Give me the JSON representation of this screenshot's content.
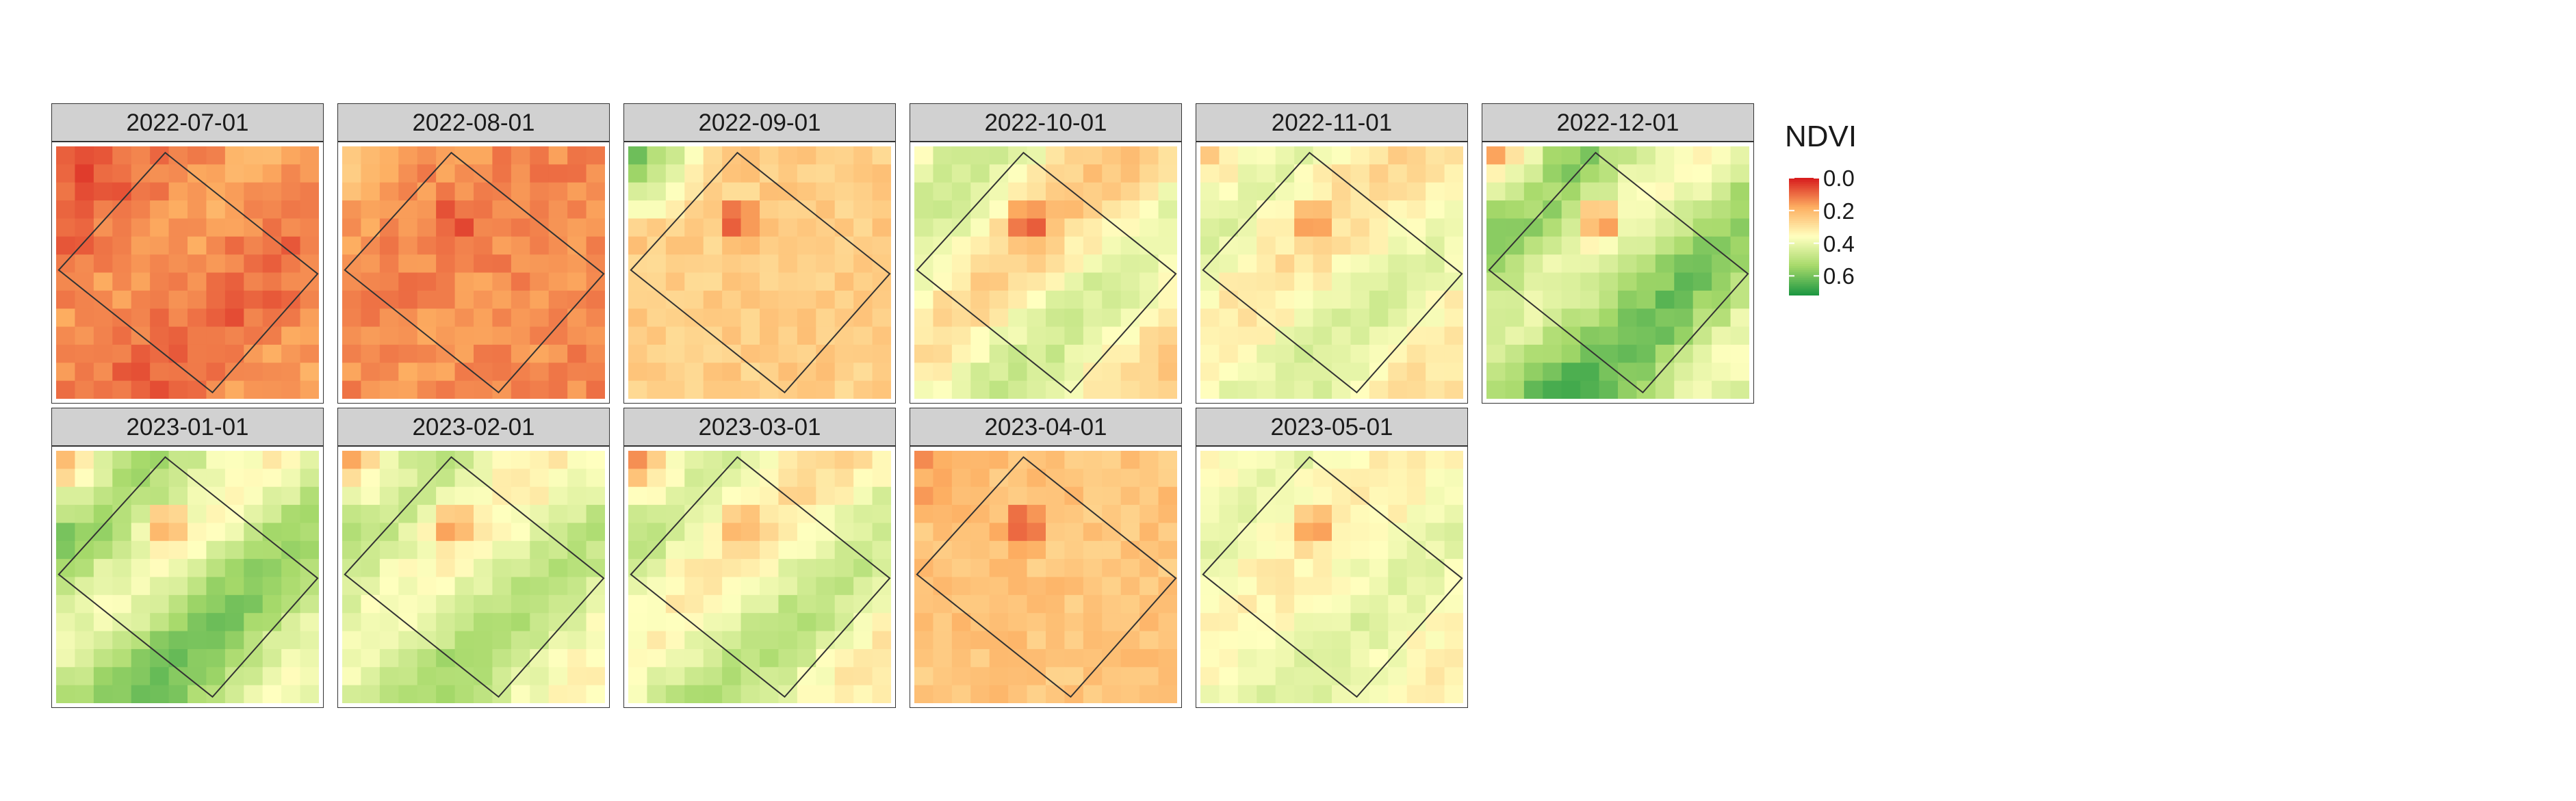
{
  "chart_data": {
    "type": "heatmap",
    "title": "",
    "xlabel": "",
    "ylabel": "",
    "facet_layout": {
      "ncol": 6,
      "nrow": 2
    },
    "legend": {
      "title": "NDVI",
      "position": "right",
      "colors": [
        "#d7191c",
        "#fdae61",
        "#ffffbf",
        "#a6d96a",
        "#1a9641"
      ],
      "domain": [
        0,
        0.72
      ],
      "breaks": [
        0.0,
        0.2,
        0.4,
        0.6
      ],
      "break_labels": [
        "0.0",
        "0.2",
        "0.4",
        "0.6"
      ]
    },
    "grid_size": {
      "rows": 14,
      "cols": 14
    },
    "overlay": "rotated rectangular field boundary outline",
    "panels": [
      {
        "label": "2022-07-01",
        "base": 0.13,
        "high_offset": -0.05,
        "nw_offset": -0.04,
        "hotspot": 0.02
      },
      {
        "label": "2022-08-01",
        "base": 0.14,
        "high_offset": 0.01,
        "nw_offset": 0.1,
        "hotspot": 0.06
      },
      {
        "label": "2022-09-01",
        "base": 0.25,
        "high_offset": 0.0,
        "nw_offset": 0.38,
        "hotspot": 0.16
      },
      {
        "label": "2022-10-01",
        "base": 0.35,
        "high_offset": 0.14,
        "nw_offset": 0.04,
        "hotspot": 0.2
      },
      {
        "label": "2022-11-01",
        "base": 0.36,
        "high_offset": 0.1,
        "nw_offset": -0.1,
        "hotspot": 0.16
      },
      {
        "label": "2022-12-01",
        "base": 0.5,
        "high_offset": 0.16,
        "nw_offset": -0.3,
        "hotspot": 0.24
      },
      {
        "label": "2023-01-01",
        "base": 0.48,
        "high_offset": 0.15,
        "nw_offset": -0.3,
        "hotspot": 0.22
      },
      {
        "label": "2023-02-01",
        "base": 0.43,
        "high_offset": 0.12,
        "nw_offset": -0.24,
        "hotspot": 0.2
      },
      {
        "label": "2023-03-01",
        "base": 0.4,
        "high_offset": 0.13,
        "nw_offset": -0.24,
        "hotspot": 0.15
      },
      {
        "label": "2023-04-01",
        "base": 0.23,
        "high_offset": 0.0,
        "nw_offset": -0.08,
        "hotspot": 0.15
      },
      {
        "label": "2023-05-01",
        "base": 0.37,
        "high_offset": 0.07,
        "nw_offset": -0.05,
        "hotspot": 0.16
      }
    ]
  }
}
